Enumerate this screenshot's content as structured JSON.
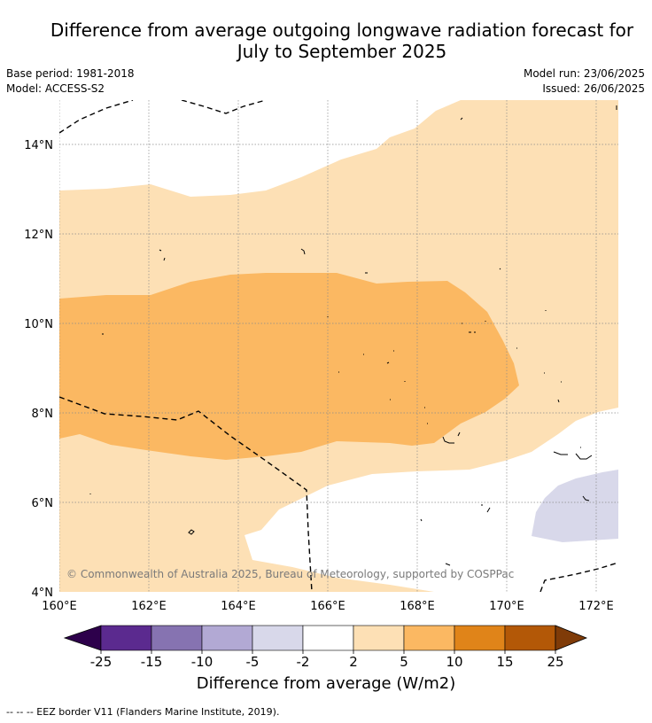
{
  "title_line1": "Difference from average outgoing longwave radiation forecast for",
  "title_line2": "July to September 2025",
  "base_period": "Base period: 1981-2018",
  "model": "Model: ACCESS-S2",
  "model_run": "Model run: 23/06/2025",
  "issued": "Issued: 26/06/2025",
  "lat_labels": [
    "14°N",
    "12°N",
    "10°N",
    "8°N",
    "6°N",
    "4°N"
  ],
  "lon_labels": [
    "160°E",
    "162°E",
    "164°E",
    "166°E",
    "168°E",
    "170°E",
    "172°E"
  ],
  "credit": "© Commonwealth of Australia 2025, Bureau of Meteorology, supported by COSPPac",
  "colorbar": {
    "ticks": [
      "-25",
      "-15",
      "-10",
      "-5",
      "-2",
      "2",
      "5",
      "10",
      "15",
      "25"
    ],
    "colors": [
      "#5b2a8f",
      "#8673b1",
      "#b2a9d4",
      "#d8d8ea",
      "#ffffff",
      "#fde0b5",
      "#fbb862",
      "#e08419",
      "#b35807"
    ],
    "extend_low": "#2d004b",
    "extend_high": "#7f3b08",
    "label": "Difference from average (W/m2)"
  },
  "footer": "--  --  -- EEZ border V11 (Flanders Marine Institute, 2019)."
}
